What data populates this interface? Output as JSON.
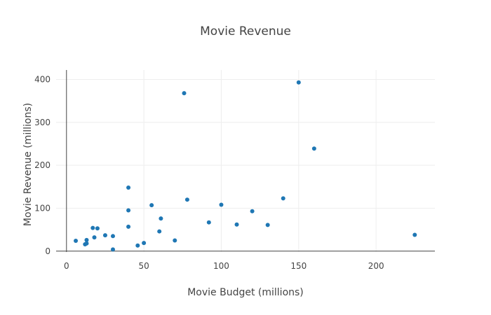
{
  "chart_data": {
    "type": "scatter",
    "title": "Movie Revenue",
    "xlabel": "Movie Budget (millions)",
    "ylabel": "Movie Revenue (millions)",
    "xlim": [
      -6.7,
      238
    ],
    "ylim": [
      -2,
      422
    ],
    "xticks": [
      0,
      50,
      100,
      150,
      200
    ],
    "yticks": [
      0,
      100,
      200,
      300,
      400
    ],
    "grid": true,
    "marker_color": "#1f77b4",
    "series": [
      {
        "points": [
          {
            "x": 6,
            "y": 24
          },
          {
            "x": 12,
            "y": 16
          },
          {
            "x": 13,
            "y": 18
          },
          {
            "x": 13,
            "y": 26
          },
          {
            "x": 17,
            "y": 54
          },
          {
            "x": 18,
            "y": 32
          },
          {
            "x": 20,
            "y": 53
          },
          {
            "x": 25,
            "y": 37
          },
          {
            "x": 30,
            "y": 35
          },
          {
            "x": 30,
            "y": 4
          },
          {
            "x": 40,
            "y": 148
          },
          {
            "x": 40,
            "y": 95
          },
          {
            "x": 40,
            "y": 57
          },
          {
            "x": 46,
            "y": 13
          },
          {
            "x": 50,
            "y": 19
          },
          {
            "x": 55,
            "y": 107
          },
          {
            "x": 60,
            "y": 46
          },
          {
            "x": 61,
            "y": 76
          },
          {
            "x": 70,
            "y": 25
          },
          {
            "x": 76,
            "y": 368
          },
          {
            "x": 78,
            "y": 120
          },
          {
            "x": 92,
            "y": 67
          },
          {
            "x": 100,
            "y": 108
          },
          {
            "x": 110,
            "y": 62
          },
          {
            "x": 120,
            "y": 93
          },
          {
            "x": 130,
            "y": 61
          },
          {
            "x": 140,
            "y": 123
          },
          {
            "x": 150,
            "y": 393
          },
          {
            "x": 160,
            "y": 239
          },
          {
            "x": 225,
            "y": 38
          }
        ]
      }
    ]
  }
}
